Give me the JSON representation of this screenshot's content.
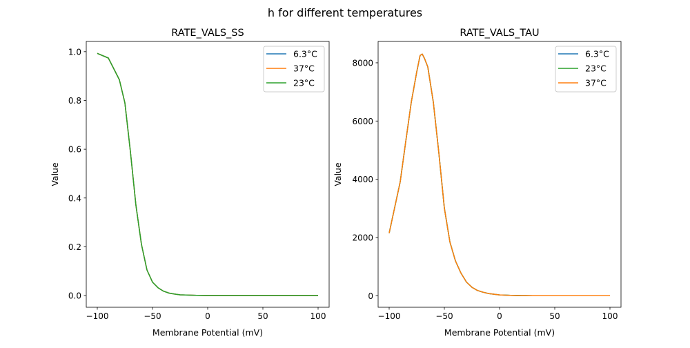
{
  "suptitle": "h for different temperatures",
  "colors": {
    "6.3°C": "#1f77b4",
    "37°C": "#ff7f0e",
    "23°C": "#2ca02c"
  },
  "chart_data": [
    {
      "type": "line",
      "title": "RATE_VALS_SS",
      "xlabel": "Membrane Potential (mV)",
      "ylabel": "Value",
      "xlim": [
        -110,
        110
      ],
      "ylim": [
        -0.048,
        1.042
      ],
      "xticks": [
        -100,
        -50,
        0,
        50,
        100
      ],
      "xtick_labels": [
        "−100",
        "−50",
        "0",
        "50",
        "100"
      ],
      "yticks": [
        0.0,
        0.2,
        0.4,
        0.6,
        0.8,
        1.0
      ],
      "ytick_labels": [
        "0.0",
        "0.2",
        "0.4",
        "0.6",
        "0.8",
        "1.0"
      ],
      "legend_position": "top-right",
      "grid": false,
      "x": [
        -100,
        -90,
        -80,
        -75,
        -70,
        -65,
        -60,
        -55,
        -50,
        -45,
        -40,
        -35,
        -30,
        -25,
        -20,
        -10,
        0,
        10,
        20,
        30,
        40,
        50,
        60,
        70,
        80,
        90,
        100
      ],
      "series": [
        {
          "name": "6.3°C",
          "values": [
            0.993,
            0.974,
            0.885,
            0.79,
            0.59,
            0.37,
            0.21,
            0.105,
            0.055,
            0.032,
            0.018,
            0.01,
            0.006,
            0.003,
            0.002,
            0.001,
            0,
            0,
            0,
            0,
            0,
            0,
            0,
            0,
            0,
            0,
            0
          ]
        },
        {
          "name": "37°C",
          "values": [
            0.993,
            0.974,
            0.885,
            0.79,
            0.59,
            0.37,
            0.21,
            0.105,
            0.055,
            0.032,
            0.018,
            0.01,
            0.006,
            0.003,
            0.002,
            0.001,
            0,
            0,
            0,
            0,
            0,
            0,
            0,
            0,
            0,
            0,
            0
          ]
        },
        {
          "name": "23°C",
          "values": [
            0.993,
            0.974,
            0.885,
            0.79,
            0.59,
            0.37,
            0.21,
            0.105,
            0.055,
            0.032,
            0.018,
            0.01,
            0.006,
            0.003,
            0.002,
            0.001,
            0,
            0,
            0,
            0,
            0,
            0,
            0,
            0,
            0,
            0,
            0
          ]
        }
      ]
    },
    {
      "type": "line",
      "title": "RATE_VALS_TAU",
      "xlabel": "Membrane Potential (mV)",
      "ylabel": "Value",
      "xlim": [
        -110,
        110
      ],
      "ylim": [
        -396,
        8734
      ],
      "xticks": [
        -100,
        -50,
        0,
        50,
        100
      ],
      "xtick_labels": [
        "−100",
        "−50",
        "0",
        "50",
        "100"
      ],
      "yticks": [
        0,
        2000,
        4000,
        6000,
        8000
      ],
      "ytick_labels": [
        "0",
        "2000",
        "4000",
        "6000",
        "8000"
      ],
      "legend_position": "top-right",
      "grid": false,
      "x": [
        -100,
        -90,
        -85,
        -80,
        -75,
        -72,
        -70,
        -68,
        -65,
        -60,
        -55,
        -50,
        -45,
        -40,
        -35,
        -30,
        -25,
        -20,
        -15,
        -10,
        0,
        10,
        20,
        30,
        40,
        50,
        60,
        70,
        80,
        90,
        100
      ],
      "series": [
        {
          "name": "6.3°C",
          "values": [
            2150,
            3910,
            5290,
            6640,
            7690,
            8250,
            8300,
            8150,
            7860,
            6650,
            4910,
            3010,
            1850,
            1200,
            780,
            470,
            290,
            180,
            120,
            75,
            28,
            11,
            5,
            2,
            1,
            0,
            0,
            0,
            0,
            0,
            0
          ]
        },
        {
          "name": "23°C",
          "values": [
            2150,
            3910,
            5290,
            6640,
            7690,
            8250,
            8300,
            8150,
            7860,
            6650,
            4910,
            3010,
            1850,
            1200,
            780,
            470,
            290,
            180,
            120,
            75,
            28,
            11,
            5,
            2,
            1,
            0,
            0,
            0,
            0,
            0,
            0
          ]
        },
        {
          "name": "37°C",
          "values": [
            2150,
            3910,
            5290,
            6640,
            7690,
            8250,
            8300,
            8150,
            7860,
            6650,
            4910,
            3010,
            1850,
            1200,
            780,
            470,
            290,
            180,
            120,
            75,
            28,
            11,
            5,
            2,
            1,
            0,
            0,
            0,
            0,
            0,
            0
          ]
        }
      ]
    }
  ]
}
